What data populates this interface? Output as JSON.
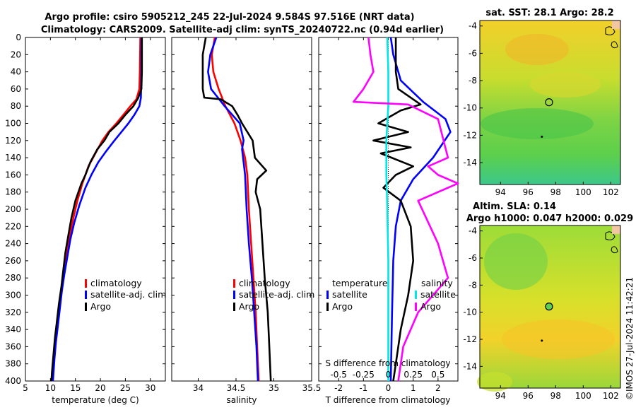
{
  "title": {
    "line1": "Argo profile: csiro 5905212_245 22-Jul-2024 9.584S 97.516E (NRT data)",
    "line2": "Climatology: CARS2009. Satellite-adj clim: synTS_20240722.nc (0.94d earlier)"
  },
  "colors": {
    "climatology": "#ff0000",
    "satellite": "#0000ff",
    "argo": "#000000",
    "sat_sal": "#00e5e5",
    "clim_sal": "#ff00ff"
  },
  "chart_data": [
    {
      "id": "temperature",
      "type": "line",
      "xlabel": "temperature (deg C)",
      "xlim": [
        5,
        33
      ],
      "xticks": [
        5,
        10,
        15,
        20,
        25,
        30
      ],
      "ylim": [
        400,
        0
      ],
      "yticks": [
        0,
        20,
        40,
        60,
        80,
        100,
        120,
        140,
        160,
        180,
        200,
        220,
        240,
        260,
        280,
        300,
        320,
        340,
        360,
        380,
        400
      ],
      "legend": [
        "climatology",
        "satellite-adj. clim",
        "Argo"
      ],
      "series": [
        {
          "name": "climatology",
          "color": "#ff0000",
          "points": [
            [
              28.0,
              0
            ],
            [
              27.9,
              40
            ],
            [
              27.8,
              60
            ],
            [
              27.2,
              72
            ],
            [
              26.0,
              80
            ],
            [
              24.6,
              90
            ],
            [
              23.2,
              100
            ],
            [
              21.6,
              110
            ],
            [
              20.4,
              120
            ],
            [
              19.0,
              135
            ],
            [
              17.6,
              150
            ],
            [
              16.4,
              170
            ],
            [
              15.4,
              190
            ],
            [
              14.6,
              210
            ],
            [
              13.9,
              230
            ],
            [
              13.3,
              250
            ],
            [
              12.8,
              270
            ],
            [
              12.3,
              290
            ],
            [
              11.9,
              310
            ],
            [
              11.5,
              330
            ],
            [
              11.1,
              350
            ],
            [
              10.8,
              370
            ],
            [
              10.5,
              390
            ],
            [
              10.3,
              400
            ]
          ]
        },
        {
          "name": "satellite-adj. clim",
          "color": "#0000ff",
          "points": [
            [
              28.2,
              0
            ],
            [
              28.2,
              40
            ],
            [
              28.1,
              70
            ],
            [
              27.8,
              80
            ],
            [
              26.8,
              90
            ],
            [
              25.6,
              100
            ],
            [
              24.2,
              110
            ],
            [
              22.8,
              120
            ],
            [
              21.2,
              132
            ],
            [
              19.6,
              145
            ],
            [
              18.2,
              160
            ],
            [
              17.0,
              175
            ],
            [
              15.8,
              195
            ],
            [
              14.8,
              215
            ],
            [
              14.0,
              235
            ],
            [
              13.4,
              255
            ],
            [
              12.8,
              275
            ],
            [
              12.3,
              295
            ],
            [
              11.9,
              315
            ],
            [
              11.5,
              335
            ],
            [
              11.1,
              355
            ],
            [
              10.8,
              375
            ],
            [
              10.5,
              400
            ]
          ]
        },
        {
          "name": "Argo",
          "color": "#000000",
          "points": [
            [
              28.3,
              0
            ],
            [
              28.3,
              40
            ],
            [
              28.2,
              60
            ],
            [
              27.6,
              70
            ],
            [
              26.6,
              80
            ],
            [
              25.0,
              90
            ],
            [
              23.6,
              100
            ],
            [
              21.8,
              110
            ],
            [
              20.8,
              120
            ],
            [
              19.4,
              130
            ],
            [
              18.0,
              145
            ],
            [
              17.0,
              160
            ],
            [
              16.2,
              170
            ],
            [
              15.0,
              190
            ],
            [
              14.2,
              210
            ],
            [
              13.6,
              230
            ],
            [
              13.0,
              250
            ],
            [
              12.6,
              270
            ],
            [
              12.2,
              290
            ],
            [
              11.7,
              310
            ],
            [
              11.3,
              330
            ],
            [
              10.9,
              350
            ],
            [
              10.6,
              370
            ],
            [
              10.3,
              390
            ],
            [
              10.2,
              400
            ]
          ]
        }
      ]
    },
    {
      "id": "salinity",
      "type": "line",
      "xlabel": "salinity",
      "xlim": [
        33.65,
        35.5
      ],
      "xticks": [
        34,
        34.5,
        35,
        35.5
      ],
      "ylim": [
        400,
        0
      ],
      "legend": [
        "climatology",
        "satellite-adj. clim",
        "Argo"
      ],
      "series": [
        {
          "name": "climatology",
          "color": "#ff0000",
          "points": [
            [
              34.22,
              0
            ],
            [
              34.18,
              20
            ],
            [
              34.2,
              40
            ],
            [
              34.27,
              60
            ],
            [
              34.36,
              80
            ],
            [
              34.48,
              100
            ],
            [
              34.56,
              120
            ],
            [
              34.62,
              140
            ],
            [
              34.65,
              160
            ],
            [
              34.67,
              200
            ],
            [
              34.7,
              240
            ],
            [
              34.73,
              280
            ],
            [
              34.76,
              320
            ],
            [
              34.78,
              360
            ],
            [
              34.8,
              400
            ]
          ]
        },
        {
          "name": "satellite-adj. clim",
          "color": "#0000ff",
          "points": [
            [
              34.24,
              0
            ],
            [
              34.16,
              20
            ],
            [
              34.13,
              40
            ],
            [
              34.17,
              60
            ],
            [
              34.35,
              80
            ],
            [
              34.55,
              100
            ],
            [
              34.6,
              120
            ],
            [
              34.58,
              130
            ],
            [
              34.6,
              145
            ],
            [
              34.62,
              160
            ],
            [
              34.64,
              200
            ],
            [
              34.67,
              240
            ],
            [
              34.71,
              280
            ],
            [
              34.74,
              320
            ],
            [
              34.77,
              360
            ],
            [
              34.79,
              400
            ]
          ]
        },
        {
          "name": "Argo",
          "color": "#000000",
          "points": [
            [
              34.1,
              0
            ],
            [
              34.06,
              20
            ],
            [
              34.06,
              40
            ],
            [
              34.06,
              60
            ],
            [
              34.08,
              70
            ],
            [
              34.3,
              72
            ],
            [
              34.45,
              80
            ],
            [
              34.52,
              90
            ],
            [
              34.58,
              100
            ],
            [
              34.65,
              110
            ],
            [
              34.72,
              120
            ],
            [
              34.75,
              140
            ],
            [
              34.9,
              155
            ],
            [
              34.78,
              165
            ],
            [
              34.76,
              180
            ],
            [
              34.82,
              200
            ],
            [
              34.85,
              240
            ],
            [
              34.88,
              280
            ],
            [
              34.92,
              320
            ],
            [
              34.94,
              360
            ],
            [
              34.96,
              400
            ]
          ]
        }
      ]
    },
    {
      "id": "difference",
      "type": "line",
      "xlabel": "T difference from climatology",
      "xlabel_top": "S difference from climatology",
      "xlim": [
        -2.8,
        2.8
      ],
      "xticks": [
        -2,
        -1,
        0,
        1,
        2
      ],
      "sticks": [
        -0.5,
        -0.25,
        0,
        0.25,
        0.5
      ],
      "ylim": [
        400,
        0
      ],
      "legend_t_title": "temperature",
      "legend_s_title": "salinity",
      "legend_t": [
        "satellite",
        "Argo"
      ],
      "legend_s": [
        "satellite",
        "Argo"
      ],
      "series": [
        {
          "name": "T satellite",
          "color": "#0000ff",
          "points": [
            [
              0.1,
              0
            ],
            [
              0.2,
              20
            ],
            [
              0.5,
              50
            ],
            [
              1.4,
              75
            ],
            [
              2.3,
              95
            ],
            [
              2.5,
              110
            ],
            [
              1.8,
              140
            ],
            [
              1.0,
              165
            ],
            [
              0.5,
              190
            ],
            [
              0.3,
              220
            ],
            [
              0.2,
              260
            ],
            [
              0.15,
              320
            ],
            [
              0.1,
              400
            ]
          ]
        },
        {
          "name": "T Argo",
          "color": "#000000",
          "points": [
            [
              0.3,
              0
            ],
            [
              0.3,
              40
            ],
            [
              0.4,
              60
            ],
            [
              1.3,
              78
            ],
            [
              0.5,
              85
            ],
            [
              -0.4,
              100
            ],
            [
              0.8,
              110
            ],
            [
              -0.6,
              120
            ],
            [
              0.9,
              128
            ],
            [
              -0.3,
              135
            ],
            [
              1.0,
              150
            ],
            [
              0.3,
              160
            ],
            [
              -0.2,
              175
            ],
            [
              0.5,
              190
            ],
            [
              0.9,
              220
            ],
            [
              1.0,
              260
            ],
            [
              0.8,
              300
            ],
            [
              0.5,
              340
            ],
            [
              0.3,
              380
            ],
            [
              0.2,
              400
            ]
          ]
        },
        {
          "name": "S satellite",
          "color": "#00e5e5",
          "points": [
            [
              -0.01,
              0
            ],
            [
              0.0,
              40
            ],
            [
              0.0,
              80
            ],
            [
              -0.02,
              120
            ],
            [
              -0.02,
              160
            ],
            [
              -0.01,
              200
            ],
            [
              0.0,
              260
            ],
            [
              0.0,
              320
            ],
            [
              0.0,
              400
            ]
          ]
        },
        {
          "name": "S Argo",
          "color": "#ff00ff",
          "points": [
            [
              -0.2,
              0
            ],
            [
              -0.18,
              20
            ],
            [
              -0.15,
              40
            ],
            [
              -0.25,
              60
            ],
            [
              -0.35,
              75
            ],
            [
              0.2,
              78
            ],
            [
              0.5,
              95
            ],
            [
              0.6,
              140
            ],
            [
              0.4,
              150
            ],
            [
              0.5,
              160
            ],
            [
              0.7,
              170
            ],
            [
              0.3,
              190
            ],
            [
              0.5,
              240
            ],
            [
              0.6,
              280
            ],
            [
              0.3,
              320
            ],
            [
              0.15,
              360
            ],
            [
              0.1,
              400
            ]
          ]
        }
      ]
    },
    {
      "id": "sst_map",
      "type": "heatmap",
      "title": "sat. SST: 28.1 Argo: 28.2",
      "xticks": [
        94,
        96,
        98,
        100,
        102
      ],
      "yticks": [
        -4,
        -6,
        -8,
        -10,
        -12,
        -14
      ],
      "xlim": [
        92.5,
        102.7
      ],
      "ylim": [
        -15.6,
        -3.6
      ],
      "argo_position": [
        97.52,
        -9.58
      ]
    },
    {
      "id": "sla_map",
      "type": "heatmap",
      "title_line1": "Altim. SLA: 0.14",
      "title_line2": "Argo h1000: 0.047 h2000: 0.029",
      "xticks": [
        94,
        96,
        98,
        100,
        102
      ],
      "yticks": [
        -4,
        -6,
        -8,
        -10,
        -12,
        -14
      ],
      "xlim": [
        92.5,
        102.7
      ],
      "ylim": [
        -15.6,
        -3.6
      ],
      "argo_position": [
        97.52,
        -9.58
      ]
    }
  ],
  "watermark": "©IMOS 27-Jul-2024 11:42:21"
}
